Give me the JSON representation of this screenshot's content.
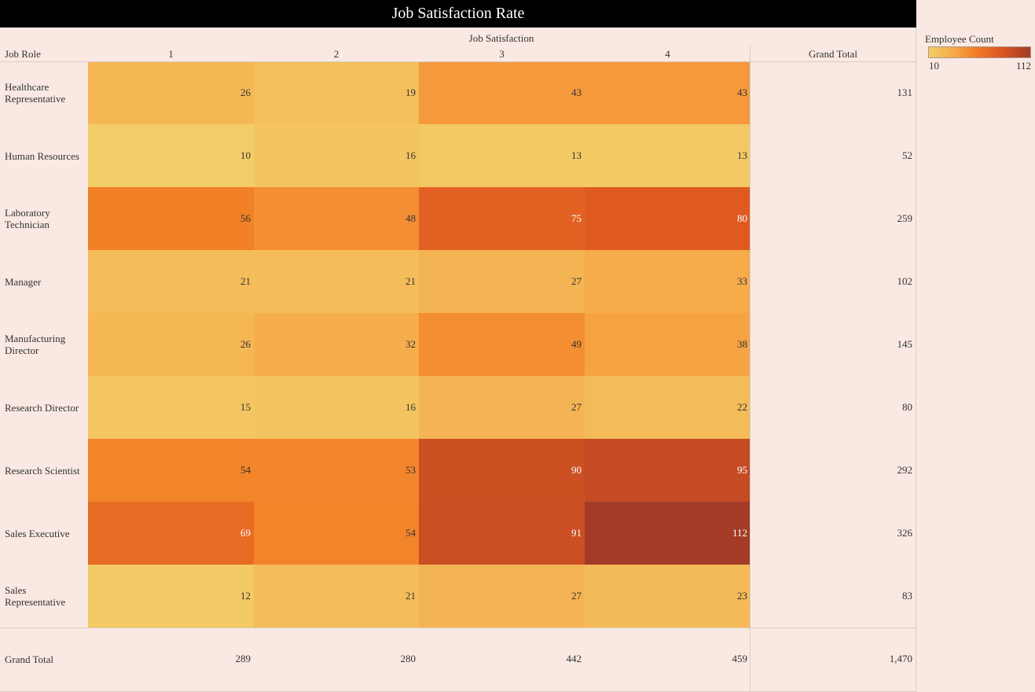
{
  "title": "Job Satisfaction Rate",
  "legend": {
    "title": "Employee Count",
    "min_label": "10",
    "max_label": "112",
    "min_color": "#f3cd68",
    "max_color": "#a33b27"
  },
  "chart_data": {
    "type": "heatmap",
    "title": "Job Satisfaction Rate",
    "column_header": "Job Satisfaction",
    "row_header": "Job Role",
    "columns": [
      "1",
      "2",
      "3",
      "4"
    ],
    "rows": [
      "Healthcare Representative",
      "Human Resources",
      "Laboratory Technician",
      "Manager",
      "Manufacturing Director",
      "Research Director",
      "Research Scientist",
      "Sales Executive",
      "Sales Representative"
    ],
    "values": [
      [
        26,
        19,
        43,
        43
      ],
      [
        10,
        16,
        13,
        13
      ],
      [
        56,
        48,
        75,
        80
      ],
      [
        21,
        21,
        27,
        33
      ],
      [
        26,
        32,
        49,
        38
      ],
      [
        15,
        16,
        27,
        22
      ],
      [
        54,
        53,
        90,
        95
      ],
      [
        69,
        54,
        91,
        112
      ],
      [
        12,
        21,
        27,
        23
      ]
    ],
    "row_totals": [
      "131",
      "52",
      "259",
      "102",
      "145",
      "80",
      "292",
      "326",
      "83"
    ],
    "column_totals": [
      "289",
      "280",
      "442",
      "459"
    ],
    "grand_total": "1,470",
    "grand_total_label": "Grand Total",
    "color_range": [
      10,
      112
    ]
  }
}
